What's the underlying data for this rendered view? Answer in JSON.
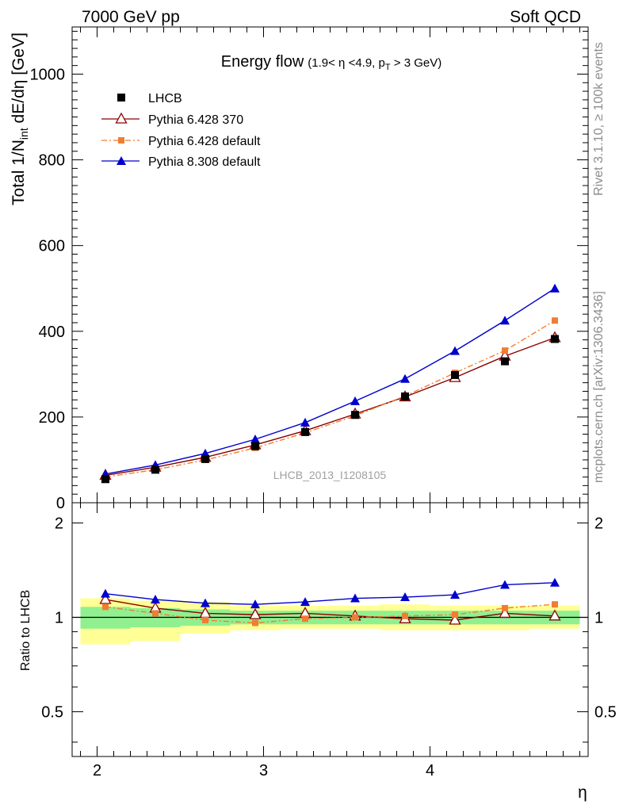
{
  "header": {
    "left": "7000 GeV pp",
    "right": "Soft QCD"
  },
  "side_labels": {
    "rivet": "Rivet 3.1.10, ≥ 100k events",
    "mcplots": "mcplots.cern.ch [arXiv:1306.3436]"
  },
  "watermark": "LHCB_2013_I1208105",
  "chart_data": [
    {
      "type": "line",
      "title": "Energy flow",
      "subtitle": "(1.9< η <4.9, p_T > 3 GeV)",
      "ylabel": "Total 1/N_int dE/dη [GeV]",
      "xlabel": "",
      "xlim": [
        1.85,
        4.95
      ],
      "ylim": [
        0,
        1110
      ],
      "yticks": [
        0,
        200,
        400,
        600,
        800,
        1000
      ],
      "tick_labels": {
        "y": [
          "0",
          "200",
          "400",
          "600",
          "800",
          "1000"
        ]
      },
      "legend_position": "top-left",
      "x": [
        2.05,
        2.35,
        2.65,
        2.95,
        3.25,
        3.55,
        3.85,
        4.15,
        4.45,
        4.75
      ],
      "series": [
        {
          "name": "LHCB",
          "color": "#000000",
          "marker": "square",
          "values": [
            55,
            77,
            102,
            132,
            165,
            205,
            248,
            298,
            330,
            382
          ]
        },
        {
          "name": "Pythia 6.428 370",
          "color": "#8b0000",
          "marker": "open-triangle",
          "values": [
            64,
            83,
            106,
            135,
            168,
            207,
            247,
            292,
            342,
            385
          ]
        },
        {
          "name": "Pythia 6.428 default",
          "color": "#f07d32",
          "marker": "square-small",
          "values": [
            60,
            77,
            100,
            128,
            163,
            203,
            249,
            303,
            355,
            425
          ]
        },
        {
          "name": "Pythia 8.308 default",
          "color": "#0000cd",
          "marker": "triangle",
          "values": [
            67,
            88,
            115,
            148,
            187,
            237,
            289,
            354,
            425,
            500
          ]
        }
      ]
    },
    {
      "type": "line",
      "title": "",
      "ylabel": "Ratio to LHCB",
      "xlabel": "η",
      "xlim": [
        1.85,
        4.95
      ],
      "ylim": [
        0.36,
        2.32
      ],
      "yscale": "log",
      "reference_line": 1,
      "tick_labels": {
        "x": [
          "2",
          "3",
          "4"
        ],
        "y": [
          "0.5",
          "1",
          "2"
        ],
        "y_right": [
          "0.5",
          "1",
          "2"
        ]
      },
      "x": [
        2.05,
        2.35,
        2.65,
        2.95,
        3.25,
        3.55,
        3.85,
        4.15,
        4.45,
        4.75
      ],
      "bands": {
        "bin_edges": [
          1.9,
          2.2,
          2.5,
          2.8,
          3.1,
          3.4,
          3.7,
          4.0,
          4.3,
          4.6,
          4.9
        ],
        "inner": {
          "color": "#90f090",
          "low": [
            0.92,
            0.93,
            0.94,
            0.95,
            0.95,
            0.95,
            0.95,
            0.95,
            0.95,
            0.95
          ],
          "high": [
            1.08,
            1.07,
            1.06,
            1.05,
            1.05,
            1.05,
            1.05,
            1.05,
            1.05,
            1.05
          ]
        },
        "outer": {
          "color": "#ffff96",
          "low": [
            0.82,
            0.84,
            0.89,
            0.91,
            0.92,
            0.92,
            0.91,
            0.91,
            0.91,
            0.92
          ],
          "high": [
            1.15,
            1.13,
            1.12,
            1.09,
            1.09,
            1.09,
            1.1,
            1.09,
            1.09,
            1.09
          ]
        }
      },
      "series": [
        {
          "name": "Pythia 6.428 370",
          "color": "#8b0000",
          "marker": "open-triangle",
          "values": [
            1.14,
            1.07,
            1.03,
            1.02,
            1.03,
            1.01,
            0.99,
            0.98,
            1.03,
            1.01
          ]
        },
        {
          "name": "Pythia 6.428 default",
          "color": "#f07d32",
          "marker": "square-small",
          "values": [
            1.08,
            1.03,
            0.98,
            0.96,
            0.99,
            1.0,
            1.01,
            1.02,
            1.07,
            1.1
          ]
        },
        {
          "name": "Pythia 8.308 default",
          "color": "#0000cd",
          "marker": "triangle",
          "values": [
            1.19,
            1.14,
            1.11,
            1.1,
            1.12,
            1.15,
            1.16,
            1.18,
            1.27,
            1.29
          ]
        }
      ]
    }
  ]
}
